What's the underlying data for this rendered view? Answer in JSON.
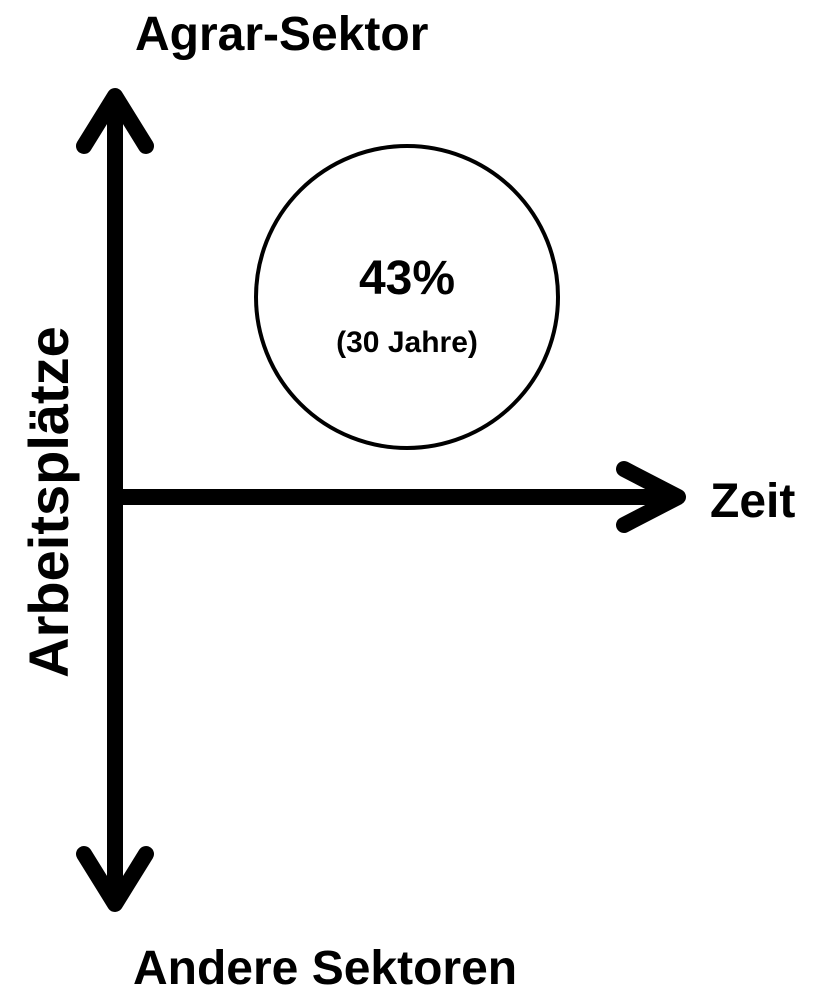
{
  "axes": {
    "top_label": "Agrar-Sektor",
    "bottom_label": "Andere Sektoren",
    "vertical_label": "Arbeitsplätze",
    "horizontal_label": "Zeit"
  },
  "circle": {
    "value_text": "43%",
    "note": "(30 Jahre)"
  }
}
